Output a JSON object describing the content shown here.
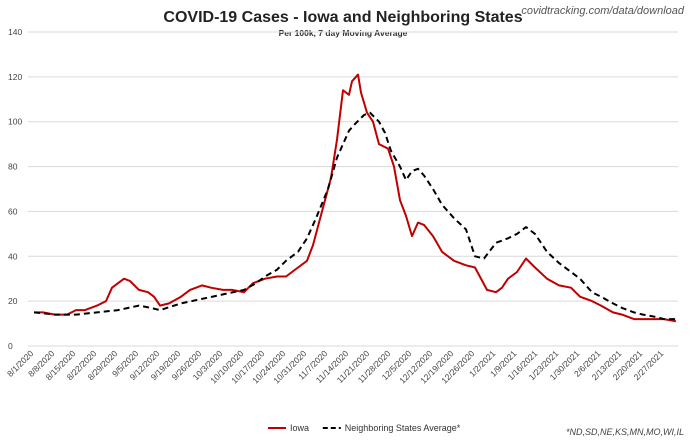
{
  "source_note": "covidtracking.com/data/download",
  "footnote": "*ND,SD,NE,KS,MN,MO,WI,IL",
  "colors": {
    "iowa": "#c00000",
    "neighbors": "#000000"
  },
  "chart_data": {
    "type": "line",
    "title": "COVID-19 Cases - Iowa and Neighboring States",
    "subtitle": "Per 100k, 7 day Moving Average",
    "xlabel": "",
    "ylabel": "",
    "ylim": [
      0,
      140
    ],
    "yticks": [
      0,
      20,
      40,
      60,
      80,
      100,
      120,
      140
    ],
    "grid": true,
    "legend_position": "bottom-center",
    "xtick_labels": [
      "8/1/2020",
      "8/8/2020",
      "8/15/2020",
      "8/22/2020",
      "8/29/2020",
      "9/5/2020",
      "9/12/2020",
      "9/19/2020",
      "9/26/2020",
      "10/3/2020",
      "10/10/2020",
      "10/17/2020",
      "10/24/2020",
      "10/31/2020",
      "11/7/2020",
      "11/14/2020",
      "11/21/2020",
      "11/28/2020",
      "12/5/2020",
      "12/12/2020",
      "12/19/2020",
      "12/26/2020",
      "1/2/2021",
      "1/9/2021",
      "1/16/2021",
      "1/23/2021",
      "1/30/2021",
      "2/6/2021",
      "2/13/2021",
      "2/20/2021",
      "2/27/2021"
    ],
    "series": [
      {
        "name": "Iowa",
        "style": "solid",
        "points": [
          [
            "8/1/2020",
            15
          ],
          [
            "8/4/2020",
            15
          ],
          [
            "8/8/2020",
            14
          ],
          [
            "8/12/2020",
            14
          ],
          [
            "8/15/2020",
            16
          ],
          [
            "8/18/2020",
            16
          ],
          [
            "8/22/2020",
            18
          ],
          [
            "8/25/2020",
            20
          ],
          [
            "8/27/2020",
            26
          ],
          [
            "8/29/2020",
            28
          ],
          [
            "8/31/2020",
            30
          ],
          [
            "9/2/2020",
            29
          ],
          [
            "9/5/2020",
            25
          ],
          [
            "9/8/2020",
            24
          ],
          [
            "9/10/2020",
            22
          ],
          [
            "9/12/2020",
            18
          ],
          [
            "9/15/2020",
            19
          ],
          [
            "9/19/2020",
            22
          ],
          [
            "9/22/2020",
            25
          ],
          [
            "9/26/2020",
            27
          ],
          [
            "9/29/2020",
            26
          ],
          [
            "10/3/2020",
            25
          ],
          [
            "10/6/2020",
            25
          ],
          [
            "10/10/2020",
            24
          ],
          [
            "10/13/2020",
            28
          ],
          [
            "10/17/2020",
            30
          ],
          [
            "10/21/2020",
            31
          ],
          [
            "10/24/2020",
            31
          ],
          [
            "10/28/2020",
            35
          ],
          [
            "10/31/2020",
            38
          ],
          [
            "11/2/2020",
            45
          ],
          [
            "11/4/2020",
            55
          ],
          [
            "11/6/2020",
            65
          ],
          [
            "11/8/2020",
            75
          ],
          [
            "11/10/2020",
            92
          ],
          [
            "11/12/2020",
            114
          ],
          [
            "11/14/2020",
            112
          ],
          [
            "11/15/2020",
            118
          ],
          [
            "11/17/2020",
            121
          ],
          [
            "11/18/2020",
            113
          ],
          [
            "11/20/2020",
            104
          ],
          [
            "11/22/2020",
            100
          ],
          [
            "11/24/2020",
            90
          ],
          [
            "11/27/2020",
            88
          ],
          [
            "11/29/2020",
            80
          ],
          [
            "12/1/2020",
            65
          ],
          [
            "12/3/2020",
            58
          ],
          [
            "12/5/2020",
            49
          ],
          [
            "12/7/2020",
            55
          ],
          [
            "12/9/2020",
            54
          ],
          [
            "12/12/2020",
            49
          ],
          [
            "12/15/2020",
            42
          ],
          [
            "12/19/2020",
            38
          ],
          [
            "12/23/2020",
            36
          ],
          [
            "12/26/2020",
            35
          ],
          [
            "12/30/2020",
            25
          ],
          [
            "1/2/2021",
            24
          ],
          [
            "1/4/2021",
            26
          ],
          [
            "1/6/2021",
            30
          ],
          [
            "1/9/2021",
            33
          ],
          [
            "1/12/2021",
            39
          ],
          [
            "1/15/2021",
            35
          ],
          [
            "1/19/2021",
            30
          ],
          [
            "1/23/2021",
            27
          ],
          [
            "1/27/2021",
            26
          ],
          [
            "1/30/2021",
            22
          ],
          [
            "2/3/2021",
            20
          ],
          [
            "2/6/2021",
            18
          ],
          [
            "2/10/2021",
            15
          ],
          [
            "2/13/2021",
            14
          ],
          [
            "2/17/2021",
            12
          ],
          [
            "2/20/2021",
            12
          ],
          [
            "2/24/2021",
            12
          ],
          [
            "2/27/2021",
            12
          ],
          [
            "3/3/2021",
            11
          ]
        ]
      },
      {
        "name": "Neighboring States Average*",
        "style": "dashed",
        "points": [
          [
            "8/1/2020",
            15
          ],
          [
            "8/8/2020",
            14
          ],
          [
            "8/15/2020",
            14
          ],
          [
            "8/22/2020",
            15
          ],
          [
            "8/29/2020",
            16
          ],
          [
            "9/5/2020",
            18
          ],
          [
            "9/9/2020",
            17
          ],
          [
            "9/12/2020",
            16
          ],
          [
            "9/19/2020",
            19
          ],
          [
            "9/26/2020",
            21
          ],
          [
            "10/3/2020",
            23
          ],
          [
            "10/10/2020",
            25
          ],
          [
            "10/14/2020",
            28
          ],
          [
            "10/17/2020",
            31
          ],
          [
            "10/21/2020",
            34
          ],
          [
            "10/24/2020",
            38
          ],
          [
            "10/28/2020",
            42
          ],
          [
            "10/31/2020",
            48
          ],
          [
            "11/3/2020",
            57
          ],
          [
            "11/7/2020",
            70
          ],
          [
            "11/10/2020",
            84
          ],
          [
            "11/12/2020",
            90
          ],
          [
            "11/14/2020",
            96
          ],
          [
            "11/16/2020",
            99
          ],
          [
            "11/19/2020",
            103
          ],
          [
            "11/21/2020",
            104
          ],
          [
            "11/24/2020",
            100
          ],
          [
            "11/26/2020",
            95
          ],
          [
            "11/28/2020",
            87
          ],
          [
            "12/1/2020",
            80
          ],
          [
            "12/3/2020",
            74
          ],
          [
            "12/5/2020",
            78
          ],
          [
            "12/7/2020",
            79
          ],
          [
            "12/9/2020",
            76
          ],
          [
            "12/12/2020",
            70
          ],
          [
            "12/15/2020",
            63
          ],
          [
            "12/19/2020",
            57
          ],
          [
            "12/23/2020",
            52
          ],
          [
            "12/26/2020",
            40
          ],
          [
            "12/29/2020",
            39
          ],
          [
            "1/2/2021",
            46
          ],
          [
            "1/6/2021",
            48
          ],
          [
            "1/9/2021",
            50
          ],
          [
            "1/12/2021",
            53
          ],
          [
            "1/15/2021",
            50
          ],
          [
            "1/19/2021",
            42
          ],
          [
            "1/23/2021",
            37
          ],
          [
            "1/27/2021",
            33
          ],
          [
            "1/30/2021",
            30
          ],
          [
            "2/3/2021",
            24
          ],
          [
            "2/6/2021",
            22
          ],
          [
            "2/10/2021",
            19
          ],
          [
            "2/13/2021",
            17
          ],
          [
            "2/17/2021",
            15
          ],
          [
            "2/20/2021",
            14
          ],
          [
            "2/24/2021",
            13
          ],
          [
            "2/27/2021",
            12
          ],
          [
            "3/3/2021",
            12
          ]
        ]
      }
    ]
  }
}
